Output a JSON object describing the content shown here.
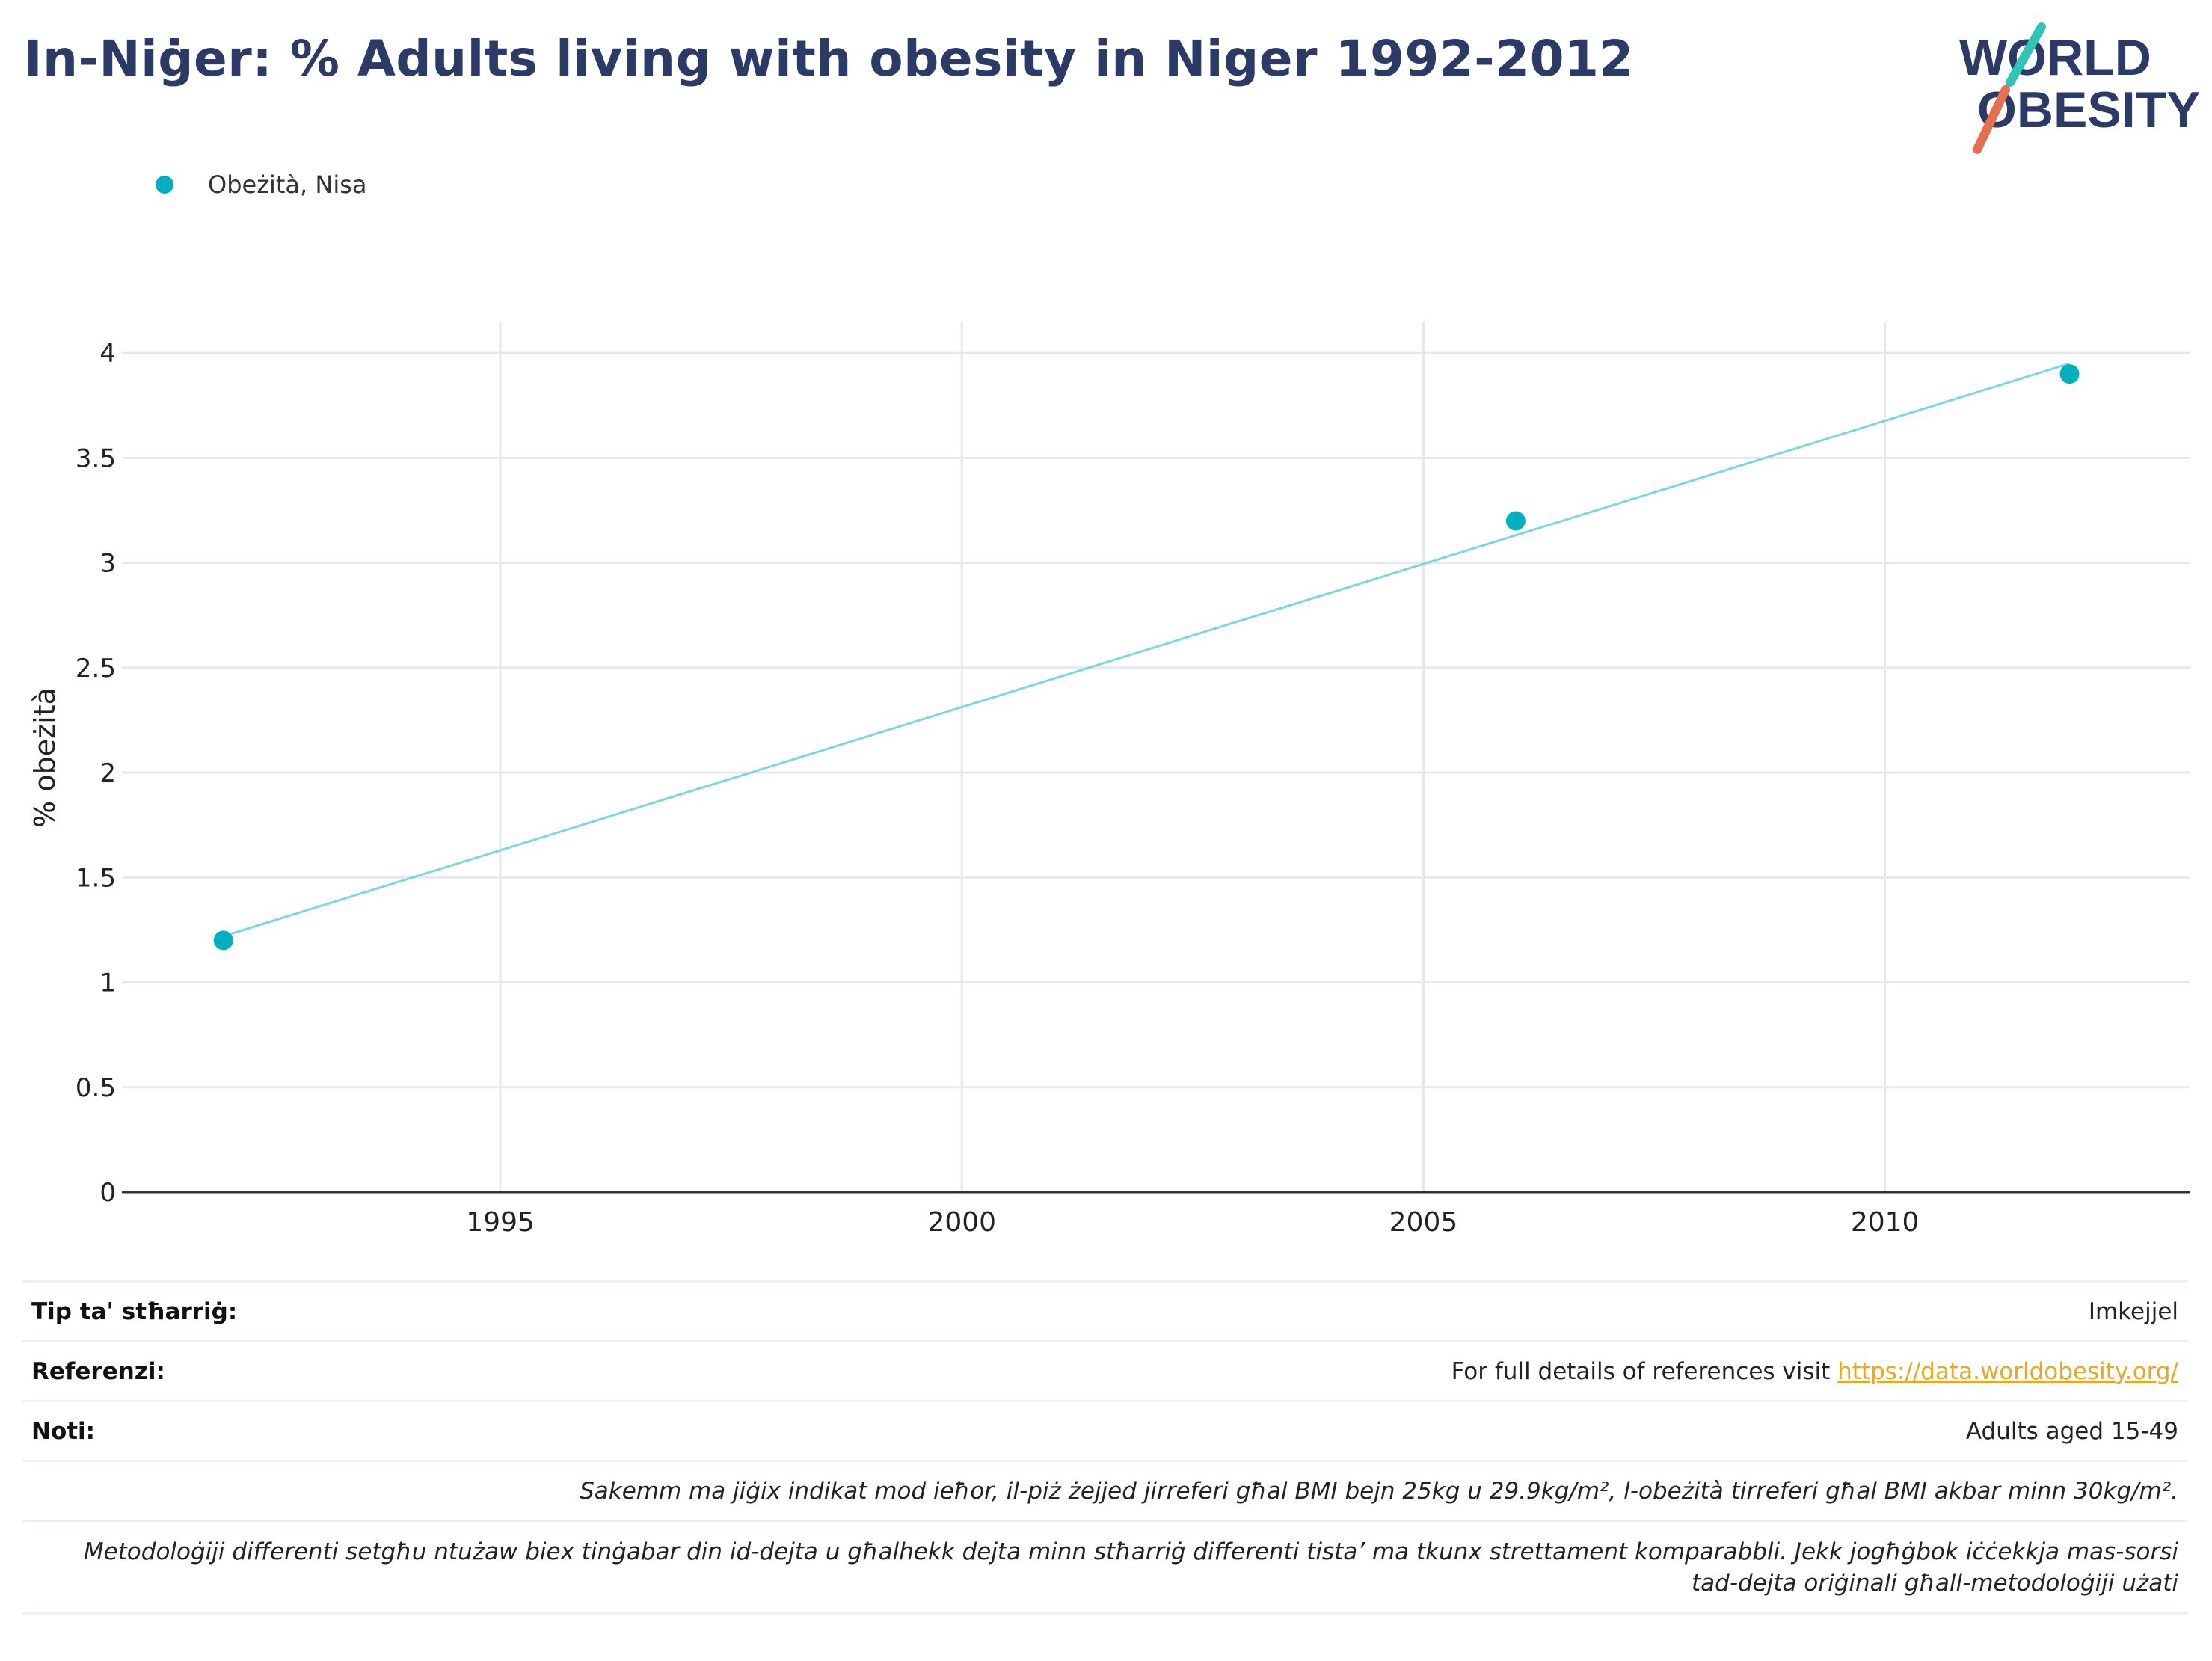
{
  "header": {
    "title": "In-Niġer: % Adults living with obesity in Niger 1992-2012"
  },
  "logo": {
    "line1": "WORLD",
    "line2": "OBESITY"
  },
  "colors": {
    "title": "#2b3a67",
    "series": "#00afc0",
    "trend": "#7fd6df",
    "link": "#e8a825",
    "logo_teal": "#2ec4b6",
    "logo_red": "#e76f51"
  },
  "chart_data": {
    "type": "scatter",
    "title": "In-Niġer: % Adults living with obesity in Niger 1992-2012",
    "xlabel": "",
    "ylabel": "% obeżità",
    "xlim": [
      1990.9,
      2013.3
    ],
    "ylim": [
      0,
      4.15
    ],
    "x_ticks": [
      1995,
      2000,
      2005,
      2010
    ],
    "y_ticks": [
      0,
      0.5,
      1,
      1.5,
      2,
      2.5,
      3,
      3.5,
      4
    ],
    "y_tick_labels": [
      "0",
      "0.5",
      "1",
      "1.5",
      "2",
      "2.5",
      "3",
      "3.5",
      "4"
    ],
    "grid": true,
    "legend_position": "top-left",
    "series": [
      {
        "name": "Obeżità, Nisa",
        "x": [
          1992,
          2006,
          2012
        ],
        "y": [
          1.2,
          3.2,
          3.9
        ]
      }
    ],
    "trendline": {
      "x": [
        1992,
        2012
      ],
      "y": [
        1.22,
        3.95
      ]
    }
  },
  "meta": {
    "source_type_label": "Tip ta' stħarriġ:",
    "source_type_value": "Imkejjel",
    "references_label": "Referenzi:",
    "references_text": "For full details of references visit ",
    "references_link": "https://data.worldobesity.org/",
    "notes_label": "Noti:",
    "notes_value": "Adults aged 15-49",
    "note_bmi": "Sakemm ma jiġix indikat mod ieħor, il-piż żejjed jirreferi għal BMI bejn 25kg u 29.9kg/m², l-obeżità tirreferi għal BMI akbar minn 30kg/m².",
    "note_method_1": "Metodoloġiji differenti setgħu ntużaw biex tinġabar din id-dejta u għalhekk dejta minn stħarriġ differenti tista’ ma tkunx strettament komparabbli. Jekk jogħġbok iċċekkja mas-sorsi",
    "note_method_2": "tad-dejta oriġinali għall-metodoloġiji użati"
  }
}
